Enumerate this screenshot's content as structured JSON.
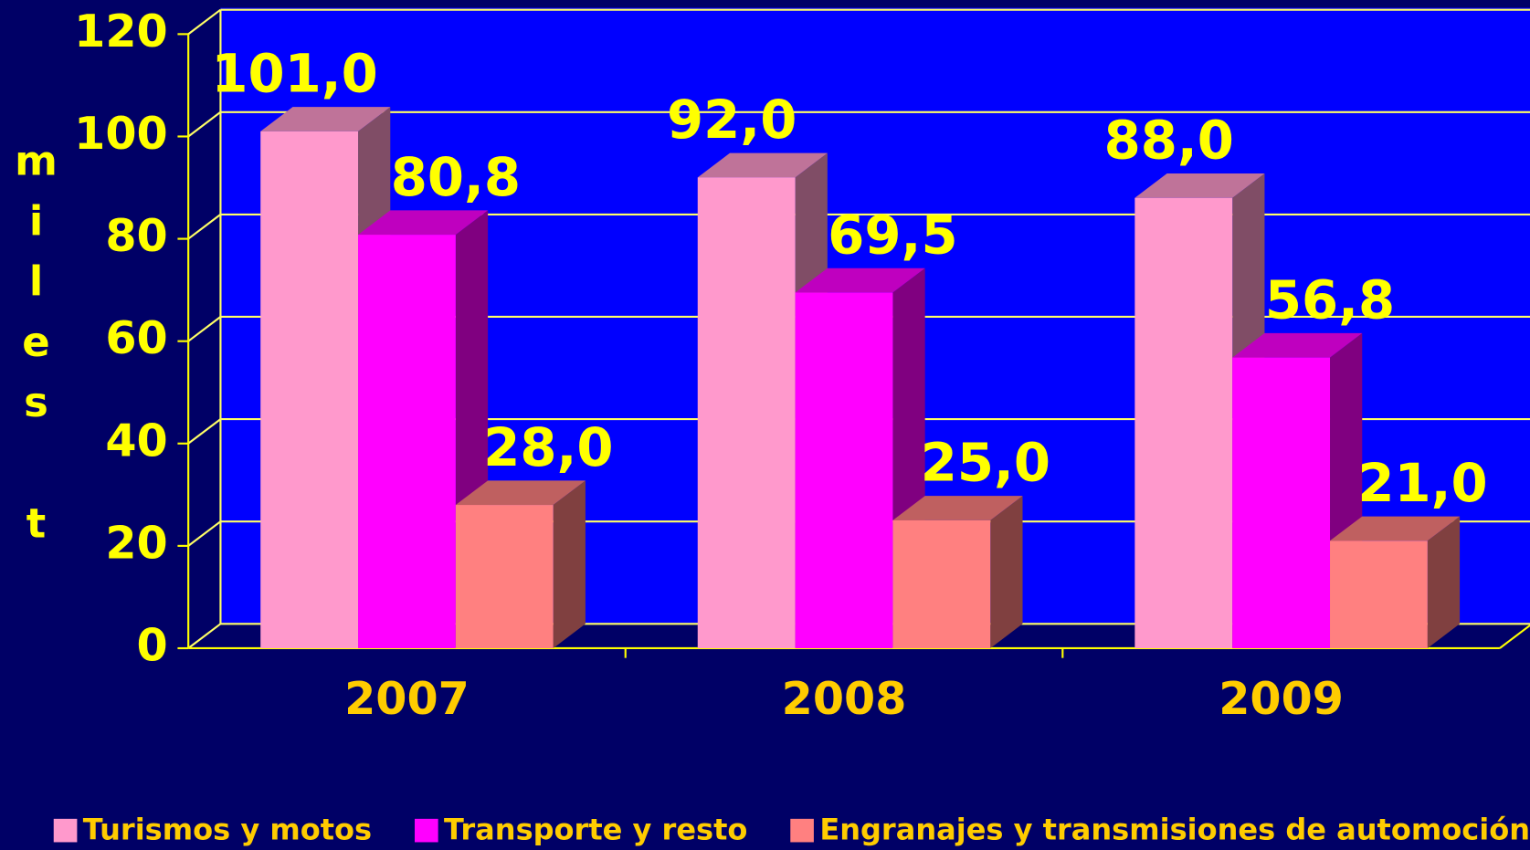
{
  "chart_data": {
    "type": "bar3d",
    "ylabel": "miles t",
    "categories": [
      "2007",
      "2008",
      "2009"
    ],
    "series": [
      {
        "name": "Turismos y motos",
        "color": "#ff99cc",
        "values": [
          101.0,
          92.0,
          88.0
        ],
        "value_labels": [
          "101,0",
          "92,0",
          "88,0"
        ]
      },
      {
        "name": "Transporte y resto",
        "color": "#ff00ff",
        "values": [
          80.8,
          69.5,
          56.8
        ],
        "value_labels": [
          "80,8",
          "69,5",
          "56,8"
        ]
      },
      {
        "name": "Engranajes y transmisiones de automoción",
        "color": "#ff8080",
        "values": [
          28.0,
          25.0,
          21.0
        ],
        "value_labels": [
          "28,0",
          "25,0",
          "21,0"
        ]
      }
    ],
    "ylim": [
      0,
      120
    ],
    "yticks": [
      0,
      20,
      40,
      60,
      80,
      100,
      120
    ],
    "grid": true,
    "legend": "bottom"
  }
}
